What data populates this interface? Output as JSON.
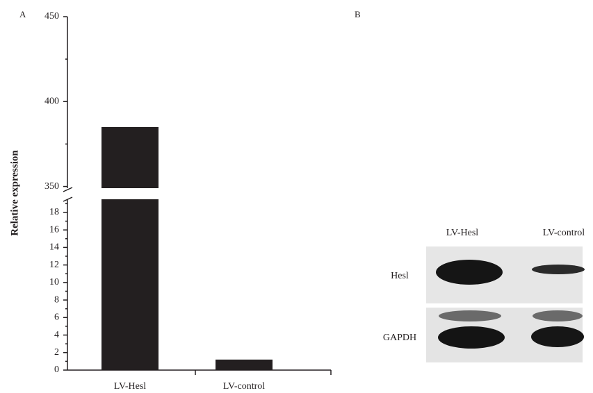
{
  "chart_data": {
    "type": "bar",
    "panel_label": "A",
    "y_label": "Relative expression",
    "categories": [
      "LV-Hesl",
      "LV-control"
    ],
    "values": [
      385,
      1.2
    ],
    "color": "#231f20",
    "y_segments": [
      {
        "ylim": [
          0,
          19.5
        ],
        "yticks": [
          0,
          2,
          4,
          6,
          8,
          10,
          12,
          14,
          16,
          18
        ],
        "minor_yticks": [
          1,
          3,
          5,
          7,
          9,
          11,
          13,
          15,
          17,
          19
        ]
      },
      {
        "ylim": [
          349,
          450
        ],
        "yticks": [
          350,
          400,
          450
        ],
        "minor_yticks": [
          375,
          425
        ]
      }
    ]
  },
  "blot": {
    "panel_label": "B",
    "lanes": [
      "LV-Hesl",
      "LV-control"
    ],
    "rows": [
      "Hesl",
      "GAPDH"
    ]
  }
}
